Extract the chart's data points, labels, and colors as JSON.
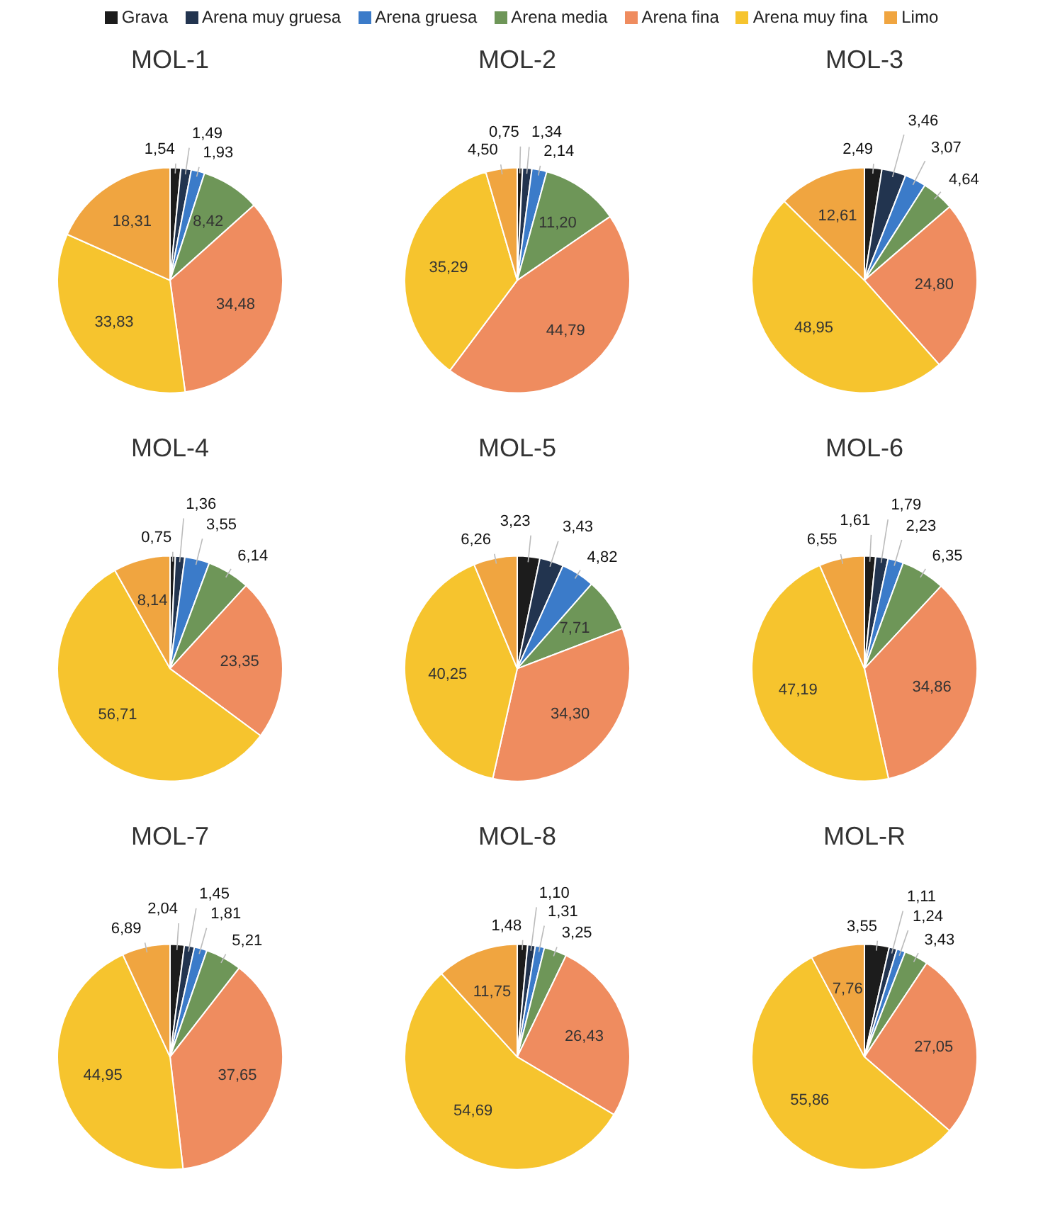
{
  "chart_data": [
    {
      "type": "pie",
      "title": "MOL-1",
      "legend": "top",
      "categories": [
        "Grava",
        "Arena muy gruesa",
        "Arena gruesa",
        "Arena media",
        "Arena fina",
        "Arena muy fina",
        "Limo"
      ],
      "colors": [
        "#1c1c1c",
        "#22344f",
        "#3b7bc9",
        "#6e9658",
        "#ef8c5f",
        "#f6c42e",
        "#f0a540"
      ],
      "values": [
        1.54,
        1.49,
        1.93,
        8.42,
        34.48,
        33.83,
        18.31
      ],
      "value_labels": [
        "1,54",
        "1,49",
        "1,93",
        "8,42",
        "34,48",
        "33,83",
        "18,31"
      ]
    },
    {
      "type": "pie",
      "title": "MOL-2",
      "categories": [
        null,
        null,
        null,
        null,
        null,
        null,
        null
      ],
      "colors": [
        "#1c1c1c",
        "#22344f",
        "#3b7bc9",
        "#6e9658",
        "#ef8c5f",
        "#f6c42e",
        "#f0a540"
      ],
      "values": [
        0.75,
        1.34,
        2.14,
        11.2,
        44.79,
        35.29,
        4.5
      ],
      "value_labels": [
        "0,75",
        "1,34",
        "2,14",
        "11,20",
        "44,79",
        "35,29",
        "4,50"
      ]
    },
    {
      "type": "pie",
      "title": "MOL-3",
      "categories": [
        null,
        null,
        null,
        null,
        null,
        null,
        null
      ],
      "colors": [
        "#1c1c1c",
        "#22344f",
        "#3b7bc9",
        "#6e9658",
        "#ef8c5f",
        "#f6c42e",
        "#f0a540"
      ],
      "values": [
        2.49,
        3.46,
        3.07,
        4.64,
        24.8,
        48.95,
        12.61
      ],
      "value_labels": [
        "2,49",
        "3,46",
        "3,07",
        "4,64",
        "24,80",
        "48,95",
        "12,61"
      ]
    },
    {
      "type": "pie",
      "title": "MOL-4",
      "categories": [
        null,
        null,
        null,
        null,
        null,
        null,
        null
      ],
      "colors": [
        "#1c1c1c",
        "#22344f",
        "#3b7bc9",
        "#6e9658",
        "#ef8c5f",
        "#f6c42e",
        "#f0a540"
      ],
      "values": [
        0.75,
        1.36,
        3.55,
        6.14,
        23.35,
        56.71,
        8.14
      ],
      "value_labels": [
        "0,75",
        "1,36",
        "3,55",
        "6,14",
        "23,35",
        "56,71",
        "8,14"
      ]
    },
    {
      "type": "pie",
      "title": "MOL-5",
      "categories": [
        null,
        null,
        null,
        null,
        null,
        null,
        null
      ],
      "colors": [
        "#1c1c1c",
        "#22344f",
        "#3b7bc9",
        "#6e9658",
        "#ef8c5f",
        "#f6c42e",
        "#f0a540"
      ],
      "values": [
        3.23,
        3.43,
        4.82,
        7.71,
        34.3,
        40.25,
        6.26
      ],
      "value_labels": [
        "3,23",
        "3,43",
        "4,82",
        "7,71",
        "34,30",
        "40,25",
        "6,26"
      ]
    },
    {
      "type": "pie",
      "title": "MOL-6",
      "categories": [
        null,
        null,
        null,
        null,
        null,
        null,
        null
      ],
      "colors": [
        "#1c1c1c",
        "#22344f",
        "#3b7bc9",
        "#6e9658",
        "#ef8c5f",
        "#f6c42e",
        "#f0a540"
      ],
      "values": [
        1.61,
        1.79,
        2.23,
        6.35,
        34.86,
        47.19,
        6.55
      ],
      "value_labels": [
        "1,61",
        "1,79",
        "2,23",
        "6,35",
        "34,86",
        "47,19",
        "6,55"
      ]
    },
    {
      "type": "pie",
      "title": "MOL-7",
      "categories": [
        null,
        null,
        null,
        null,
        null,
        null,
        null
      ],
      "colors": [
        "#1c1c1c",
        "#22344f",
        "#3b7bc9",
        "#6e9658",
        "#ef8c5f",
        "#f6c42e",
        "#f0a540"
      ],
      "values": [
        2.04,
        1.45,
        1.81,
        5.21,
        37.65,
        44.95,
        6.89
      ],
      "value_labels": [
        "2,04",
        "1,45",
        "1,81",
        "5,21",
        "37,65",
        "44,95",
        "6,89"
      ]
    },
    {
      "type": "pie",
      "title": "MOL-8",
      "categories": [
        null,
        null,
        null,
        null,
        null,
        null,
        null
      ],
      "colors": [
        "#1c1c1c",
        "#22344f",
        "#3b7bc9",
        "#6e9658",
        "#ef8c5f",
        "#f6c42e",
        "#f0a540"
      ],
      "values": [
        1.48,
        1.1,
        1.31,
        3.25,
        26.43,
        54.69,
        11.75
      ],
      "value_labels": [
        "1,48",
        "1,10",
        "1,31",
        "3,25",
        "26,43",
        "54,69",
        "11,75"
      ]
    },
    {
      "type": "pie",
      "title": "MOL-R",
      "categories": [
        null,
        null,
        null,
        null,
        null,
        null,
        null
      ],
      "colors": [
        "#1c1c1c",
        "#22344f",
        "#3b7bc9",
        "#6e9658",
        "#ef8c5f",
        "#f6c42e",
        "#f0a540"
      ],
      "values": [
        3.55,
        1.11,
        1.24,
        3.43,
        27.05,
        55.86,
        7.76
      ],
      "value_labels": [
        "3,55",
        "1,11",
        "1,24",
        "3,43",
        "27,05",
        "55,86",
        "7,76"
      ]
    }
  ]
}
